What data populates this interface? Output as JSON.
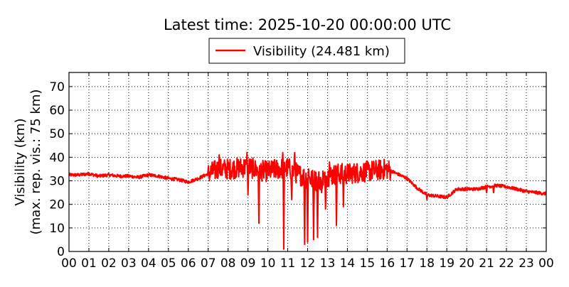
{
  "chart_data": {
    "type": "line",
    "title": "Latest time: 2025-10-20 00:00:00 UTC",
    "ylabel_line1": "Visibility (km)",
    "ylabel_line2": "(max. rep. vis.: 75 km)",
    "ylim": [
      0,
      76
    ],
    "xlim": [
      0,
      24
    ],
    "yticks": [
      0,
      10,
      20,
      30,
      40,
      50,
      60,
      70
    ],
    "xtick_labels": [
      "00",
      "01",
      "02",
      "03",
      "04",
      "05",
      "06",
      "07",
      "08",
      "09",
      "10",
      "11",
      "12",
      "13",
      "14",
      "15",
      "16",
      "17",
      "18",
      "19",
      "20",
      "21",
      "22",
      "23",
      "00"
    ],
    "grid": true,
    "legend_position": "top-center",
    "colors": {
      "series": "#ff0000",
      "grid": "#000000",
      "axis": "#000000"
    },
    "series": [
      {
        "name": "Visibility (24.481 km)",
        "x": [
          0,
          0.5,
          1,
          1.5,
          2,
          2.5,
          3,
          3.5,
          4,
          4.5,
          5,
          5.5,
          6,
          6.5,
          7,
          7.5,
          8,
          8.5,
          9,
          9.5,
          10,
          10.5,
          11,
          11.5,
          12,
          12.5,
          13,
          13.5,
          14,
          14.5,
          15,
          15.5,
          16,
          16.5,
          17,
          17.5,
          18,
          18.5,
          19,
          19.5,
          20,
          20.5,
          21,
          21.5,
          22,
          22.5,
          23,
          23.5,
          24
        ],
        "values": [
          32.5,
          32.5,
          33,
          32,
          32.5,
          32,
          32,
          31.5,
          32.5,
          32,
          31,
          30.5,
          29.5,
          31,
          33,
          35,
          35,
          35.5,
          36,
          34.5,
          34,
          35,
          35.5,
          33,
          31,
          30,
          32,
          33,
          33,
          33.5,
          34,
          34.5,
          35,
          33,
          31,
          27,
          24,
          23.5,
          23,
          26.5,
          26.5,
          26.5,
          27.5,
          28,
          27.5,
          26.5,
          25.5,
          25,
          24.5
        ]
      }
    ],
    "spikes": [
      {
        "x": 7.55,
        "y": 41
      },
      {
        "x": 8.95,
        "y": 42
      },
      {
        "x": 9.0,
        "y": 24
      },
      {
        "x": 9.55,
        "y": 12
      },
      {
        "x": 10.75,
        "y": 42
      },
      {
        "x": 10.8,
        "y": 1
      },
      {
        "x": 11.2,
        "y": 22
      },
      {
        "x": 11.35,
        "y": 42
      },
      {
        "x": 11.85,
        "y": 3
      },
      {
        "x": 12.0,
        "y": 4
      },
      {
        "x": 12.05,
        "y": 35
      },
      {
        "x": 12.3,
        "y": 5
      },
      {
        "x": 12.5,
        "y": 6
      },
      {
        "x": 12.7,
        "y": 25
      },
      {
        "x": 12.9,
        "y": 18
      },
      {
        "x": 13.1,
        "y": 38
      },
      {
        "x": 13.45,
        "y": 11
      },
      {
        "x": 13.8,
        "y": 19
      },
      {
        "x": 18.0,
        "y": 22
      },
      {
        "x": 21.0,
        "y": 25
      },
      {
        "x": 21.35,
        "y": 25
      }
    ],
    "disturbed_range": [
      7,
      16.2
    ]
  }
}
